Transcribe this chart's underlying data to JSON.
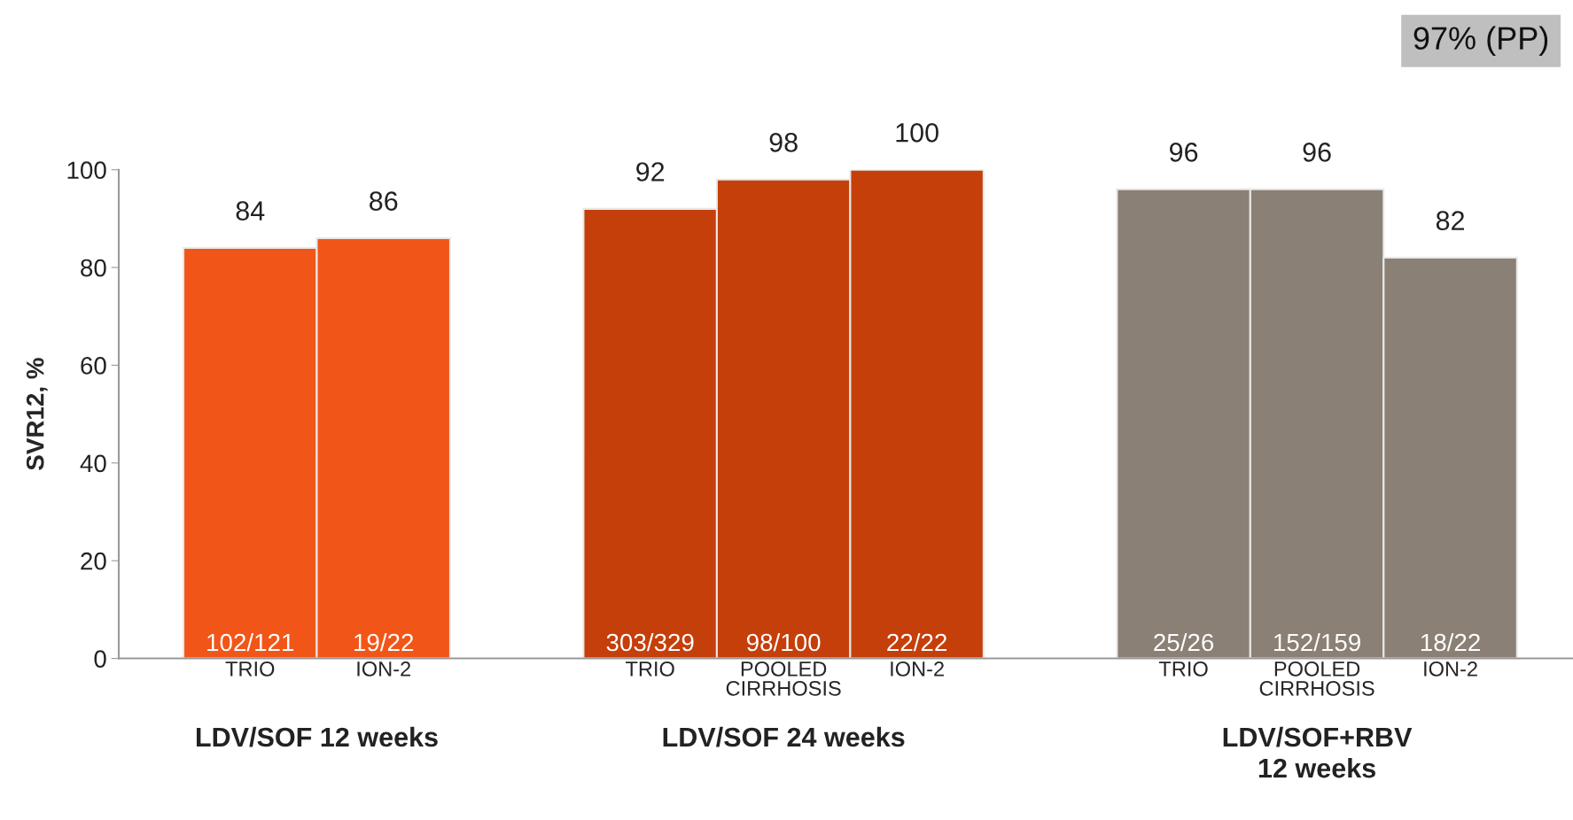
{
  "chart_data": {
    "type": "bar",
    "ylabel": "SVR12, %",
    "categories": [
      "TRIO",
      "ION-2",
      null,
      "TRIO",
      "POOLED\nCIRRHOSIS",
      "ION-2",
      null,
      "TRIO",
      "POOLED\nCIRRHOSIS",
      "ION-2"
    ],
    "series": [
      {
        "name": "LDV/SOF 12 weeks",
        "color": "#f15618",
        "values": [
          84,
          86,
          null,
          null,
          null,
          null,
          null,
          null,
          null,
          null
        ]
      },
      {
        "name": "LDV/SOF 24 weeks",
        "color": "#c53f0b",
        "values": [
          null,
          null,
          null,
          92,
          98,
          100,
          null,
          null,
          null,
          null
        ]
      },
      {
        "name": "LDV/SOF+RBV\n12 weeks",
        "color": "#8b8075",
        "values": [
          null,
          null,
          null,
          null,
          null,
          null,
          null,
          96,
          96,
          82
        ]
      }
    ],
    "data_labels": true,
    "ylim": [
      0,
      100
    ],
    "yticks": [
      0,
      20,
      40,
      60,
      80,
      100
    ],
    "grid": false,
    "legend": false,
    "annotations": [
      "97% (PP)",
      "102/121",
      "19/22",
      "303/329",
      "98/100",
      "22/22",
      "25/26",
      "152/159",
      "18/22"
    ]
  }
}
